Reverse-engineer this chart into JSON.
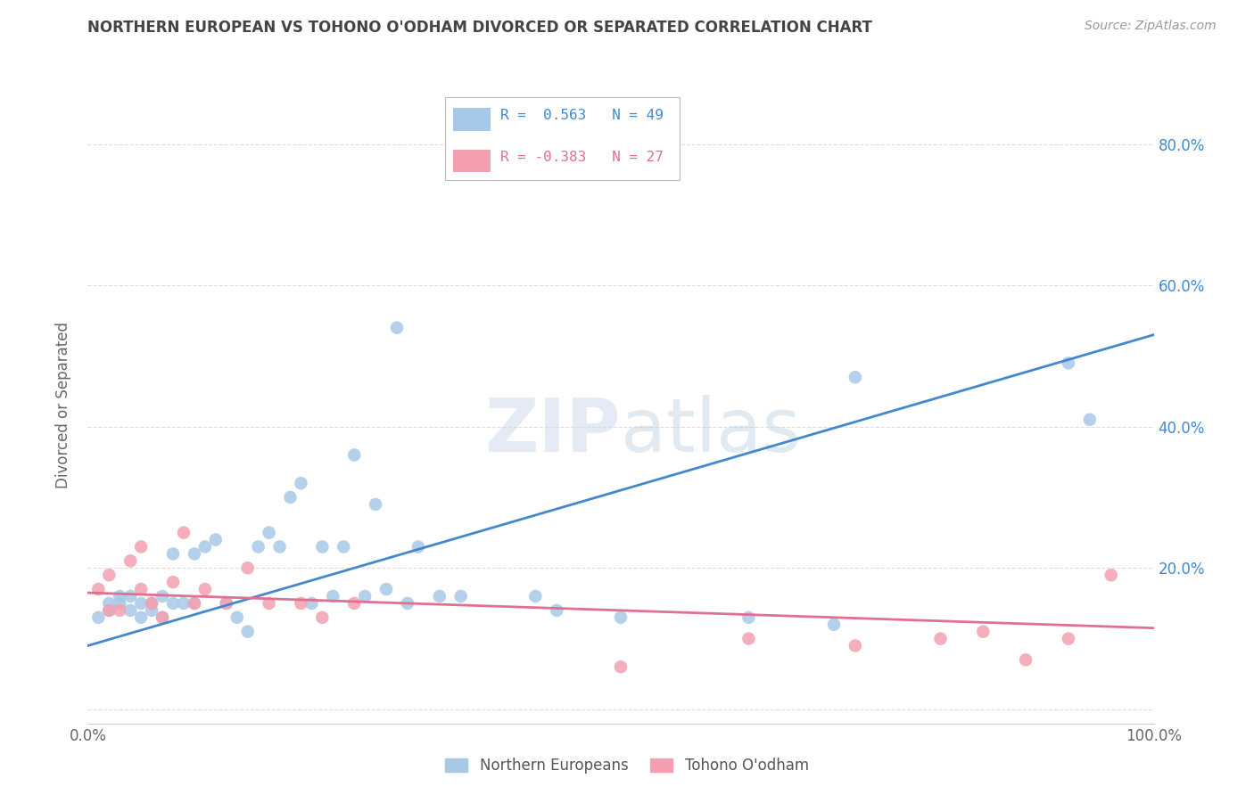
{
  "title": "NORTHERN EUROPEAN VS TOHONO O'ODHAM DIVORCED OR SEPARATED CORRELATION CHART",
  "source": "Source: ZipAtlas.com",
  "ylabel": "Divorced or Separated",
  "watermark": "ZIPatlas",
  "xlim": [
    0.0,
    1.0
  ],
  "ylim": [
    -0.02,
    0.88
  ],
  "legend_entry1": "R =  0.563   N = 49",
  "legend_entry2": "R = -0.383   N = 27",
  "legend_label1": "Northern Europeans",
  "legend_label2": "Tohono O'odham",
  "blue_color": "#a8c8e8",
  "pink_color": "#f4a0b0",
  "line_blue": "#4488cc",
  "line_pink": "#e07090",
  "title_color": "#444444",
  "axis_label_color": "#666666",
  "right_tick_color": "#4488cc",
  "grid_color": "#dddddd",
  "background_color": "#ffffff",
  "blue_scatter_x": [
    0.01,
    0.02,
    0.02,
    0.03,
    0.03,
    0.04,
    0.04,
    0.05,
    0.05,
    0.06,
    0.06,
    0.07,
    0.07,
    0.08,
    0.08,
    0.09,
    0.1,
    0.1,
    0.11,
    0.12,
    0.13,
    0.14,
    0.15,
    0.16,
    0.17,
    0.18,
    0.19,
    0.2,
    0.21,
    0.22,
    0.23,
    0.24,
    0.25,
    0.26,
    0.27,
    0.28,
    0.29,
    0.3,
    0.31,
    0.33,
    0.35,
    0.42,
    0.44,
    0.5,
    0.62,
    0.7,
    0.72,
    0.92,
    0.94
  ],
  "blue_scatter_y": [
    0.13,
    0.14,
    0.15,
    0.15,
    0.16,
    0.14,
    0.16,
    0.13,
    0.15,
    0.14,
    0.15,
    0.13,
    0.16,
    0.15,
    0.22,
    0.15,
    0.22,
    0.15,
    0.23,
    0.24,
    0.15,
    0.13,
    0.11,
    0.23,
    0.25,
    0.23,
    0.3,
    0.32,
    0.15,
    0.23,
    0.16,
    0.23,
    0.36,
    0.16,
    0.29,
    0.17,
    0.54,
    0.15,
    0.23,
    0.16,
    0.16,
    0.16,
    0.14,
    0.13,
    0.13,
    0.12,
    0.47,
    0.49,
    0.41
  ],
  "pink_scatter_x": [
    0.01,
    0.02,
    0.02,
    0.03,
    0.04,
    0.05,
    0.05,
    0.06,
    0.07,
    0.08,
    0.09,
    0.1,
    0.11,
    0.13,
    0.15,
    0.17,
    0.2,
    0.22,
    0.25,
    0.5,
    0.62,
    0.72,
    0.8,
    0.84,
    0.88,
    0.92,
    0.96
  ],
  "pink_scatter_y": [
    0.17,
    0.14,
    0.19,
    0.14,
    0.21,
    0.23,
    0.17,
    0.15,
    0.13,
    0.18,
    0.25,
    0.15,
    0.17,
    0.15,
    0.2,
    0.15,
    0.15,
    0.13,
    0.15,
    0.06,
    0.1,
    0.09,
    0.1,
    0.11,
    0.07,
    0.1,
    0.19
  ],
  "blue_line_x": [
    0.0,
    1.0
  ],
  "blue_line_y": [
    0.09,
    0.53
  ],
  "pink_line_x": [
    0.0,
    1.0
  ],
  "pink_line_y": [
    0.165,
    0.115
  ]
}
